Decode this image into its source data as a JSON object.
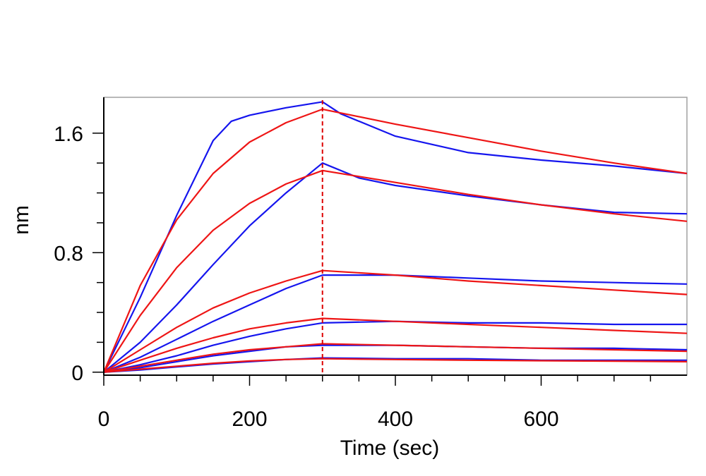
{
  "chart_data": {
    "type": "line",
    "xlabel": "Time (sec)",
    "ylabel": "nm",
    "xlim": [
      0,
      800
    ],
    "ylim": [
      -0.02,
      1.84
    ],
    "x_ticks": [
      0,
      200,
      400,
      600
    ],
    "y_ticks": [
      0,
      0.8,
      1.6
    ],
    "x_tick_labels": [
      "0",
      "200",
      "400",
      "600"
    ],
    "y_tick_labels": [
      "0",
      "0.8",
      "1.6"
    ],
    "dissociation_start": 300,
    "grid": false,
    "legend": "none",
    "colors": {
      "measured": "#1515ee",
      "fit": "#ee1515",
      "marker_line": "#dd0000"
    },
    "series": [
      {
        "role": "measured",
        "x": [
          0,
          50,
          100,
          150,
          175,
          200,
          250,
          300,
          325,
          400,
          500,
          600,
          700,
          800
        ],
        "y": [
          0,
          0.5,
          1.05,
          1.55,
          1.68,
          1.72,
          1.77,
          1.81,
          1.73,
          1.58,
          1.47,
          1.42,
          1.38,
          1.33
        ]
      },
      {
        "role": "fit",
        "x": [
          0,
          50,
          100,
          150,
          200,
          250,
          300,
          400,
          500,
          600,
          700,
          800
        ],
        "y": [
          0,
          0.58,
          1.02,
          1.33,
          1.54,
          1.67,
          1.76,
          1.66,
          1.57,
          1.48,
          1.4,
          1.33
        ]
      },
      {
        "role": "measured",
        "x": [
          0,
          50,
          100,
          150,
          200,
          250,
          300,
          350,
          400,
          500,
          600,
          700,
          800
        ],
        "y": [
          0,
          0.2,
          0.45,
          0.72,
          0.98,
          1.2,
          1.4,
          1.3,
          1.25,
          1.18,
          1.12,
          1.07,
          1.06
        ]
      },
      {
        "role": "fit",
        "x": [
          0,
          50,
          100,
          150,
          200,
          250,
          300,
          400,
          500,
          600,
          700,
          800
        ],
        "y": [
          0,
          0.38,
          0.7,
          0.95,
          1.13,
          1.26,
          1.35,
          1.27,
          1.19,
          1.12,
          1.06,
          1.01
        ]
      },
      {
        "role": "measured",
        "x": [
          0,
          50,
          100,
          150,
          200,
          250,
          300,
          400,
          500,
          600,
          700,
          800
        ],
        "y": [
          0,
          0.1,
          0.22,
          0.34,
          0.45,
          0.56,
          0.65,
          0.65,
          0.63,
          0.61,
          0.6,
          0.59
        ]
      },
      {
        "role": "fit",
        "x": [
          0,
          50,
          100,
          150,
          200,
          250,
          300,
          400,
          500,
          600,
          700,
          800
        ],
        "y": [
          0,
          0.15,
          0.3,
          0.43,
          0.53,
          0.61,
          0.68,
          0.65,
          0.61,
          0.58,
          0.55,
          0.52
        ]
      },
      {
        "role": "measured",
        "x": [
          0,
          50,
          100,
          150,
          200,
          250,
          300,
          400,
          500,
          600,
          700,
          800
        ],
        "y": [
          0,
          0.05,
          0.11,
          0.18,
          0.24,
          0.29,
          0.33,
          0.34,
          0.33,
          0.33,
          0.32,
          0.32
        ]
      },
      {
        "role": "fit",
        "x": [
          0,
          50,
          100,
          150,
          200,
          250,
          300,
          400,
          500,
          600,
          700,
          800
        ],
        "y": [
          0,
          0.08,
          0.16,
          0.23,
          0.29,
          0.33,
          0.36,
          0.34,
          0.32,
          0.3,
          0.28,
          0.26
        ]
      },
      {
        "role": "measured",
        "x": [
          0,
          50,
          100,
          150,
          200,
          250,
          300,
          400,
          500,
          600,
          700,
          800
        ],
        "y": [
          0,
          0.03,
          0.07,
          0.11,
          0.14,
          0.17,
          0.18,
          0.18,
          0.17,
          0.16,
          0.16,
          0.15
        ]
      },
      {
        "role": "fit",
        "x": [
          0,
          50,
          100,
          150,
          200,
          250,
          300,
          400,
          500,
          600,
          700,
          800
        ],
        "y": [
          0,
          0.04,
          0.08,
          0.12,
          0.15,
          0.17,
          0.19,
          0.18,
          0.17,
          0.16,
          0.15,
          0.14
        ]
      },
      {
        "role": "measured",
        "x": [
          0,
          50,
          100,
          150,
          200,
          250,
          300,
          400,
          500,
          600,
          700,
          800
        ],
        "y": [
          0,
          0.015,
          0.035,
          0.055,
          0.07,
          0.085,
          0.095,
          0.09,
          0.09,
          0.08,
          0.08,
          0.08
        ]
      },
      {
        "role": "fit",
        "x": [
          0,
          50,
          100,
          150,
          200,
          250,
          300,
          400,
          500,
          600,
          700,
          800
        ],
        "y": [
          0,
          0.02,
          0.04,
          0.06,
          0.075,
          0.085,
          0.09,
          0.085,
          0.08,
          0.077,
          0.074,
          0.07
        ]
      }
    ]
  }
}
